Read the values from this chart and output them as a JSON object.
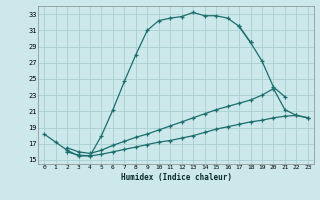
{
  "xlabel": "Humidex (Indice chaleur)",
  "background_color": "#cce8ea",
  "grid_color": "#aacfd2",
  "line_color": "#1a6e6e",
  "xlim": [
    -0.5,
    23.5
  ],
  "ylim": [
    14.5,
    34.0
  ],
  "xticks": [
    0,
    1,
    2,
    3,
    4,
    5,
    6,
    7,
    8,
    9,
    10,
    11,
    12,
    13,
    14,
    15,
    16,
    17,
    18,
    19,
    20,
    21,
    22,
    23
  ],
  "yticks": [
    15,
    17,
    19,
    21,
    23,
    25,
    27,
    29,
    31,
    33
  ],
  "line1_x": [
    0,
    1,
    2,
    3,
    4,
    5,
    6,
    7,
    8,
    9,
    10,
    11,
    12,
    13,
    14,
    15,
    16,
    17,
    18
  ],
  "line1_y": [
    18.2,
    17.2,
    16.2,
    15.5,
    15.5,
    18.0,
    21.2,
    24.7,
    28.0,
    31.0,
    32.2,
    32.5,
    32.7,
    33.2,
    32.8,
    32.8,
    32.5,
    31.5,
    29.5
  ],
  "line2_x": [
    17,
    18,
    19,
    20,
    21
  ],
  "line2_y": [
    31.5,
    29.5,
    27.2,
    24.0,
    22.8
  ],
  "line3_x": [
    2,
    3,
    4,
    5,
    6,
    7,
    8,
    9,
    10,
    11,
    12,
    13,
    14,
    15,
    16,
    17,
    18,
    19,
    20,
    21,
    22,
    23
  ],
  "line3_y": [
    16.5,
    16.0,
    15.8,
    16.2,
    16.8,
    17.3,
    17.8,
    18.2,
    18.7,
    19.2,
    19.7,
    20.2,
    20.7,
    21.2,
    21.6,
    22.0,
    22.4,
    23.0,
    23.8,
    21.2,
    20.5,
    20.2
  ],
  "line4_x": [
    2,
    3,
    4,
    5,
    6,
    7,
    8,
    9,
    10,
    11,
    12,
    13,
    14,
    15,
    16,
    17,
    18,
    19,
    20,
    21,
    22,
    23
  ],
  "line4_y": [
    16.0,
    15.6,
    15.5,
    15.7,
    16.0,
    16.3,
    16.6,
    16.9,
    17.2,
    17.4,
    17.7,
    18.0,
    18.4,
    18.8,
    19.1,
    19.4,
    19.7,
    19.9,
    20.2,
    20.4,
    20.5,
    20.2
  ]
}
